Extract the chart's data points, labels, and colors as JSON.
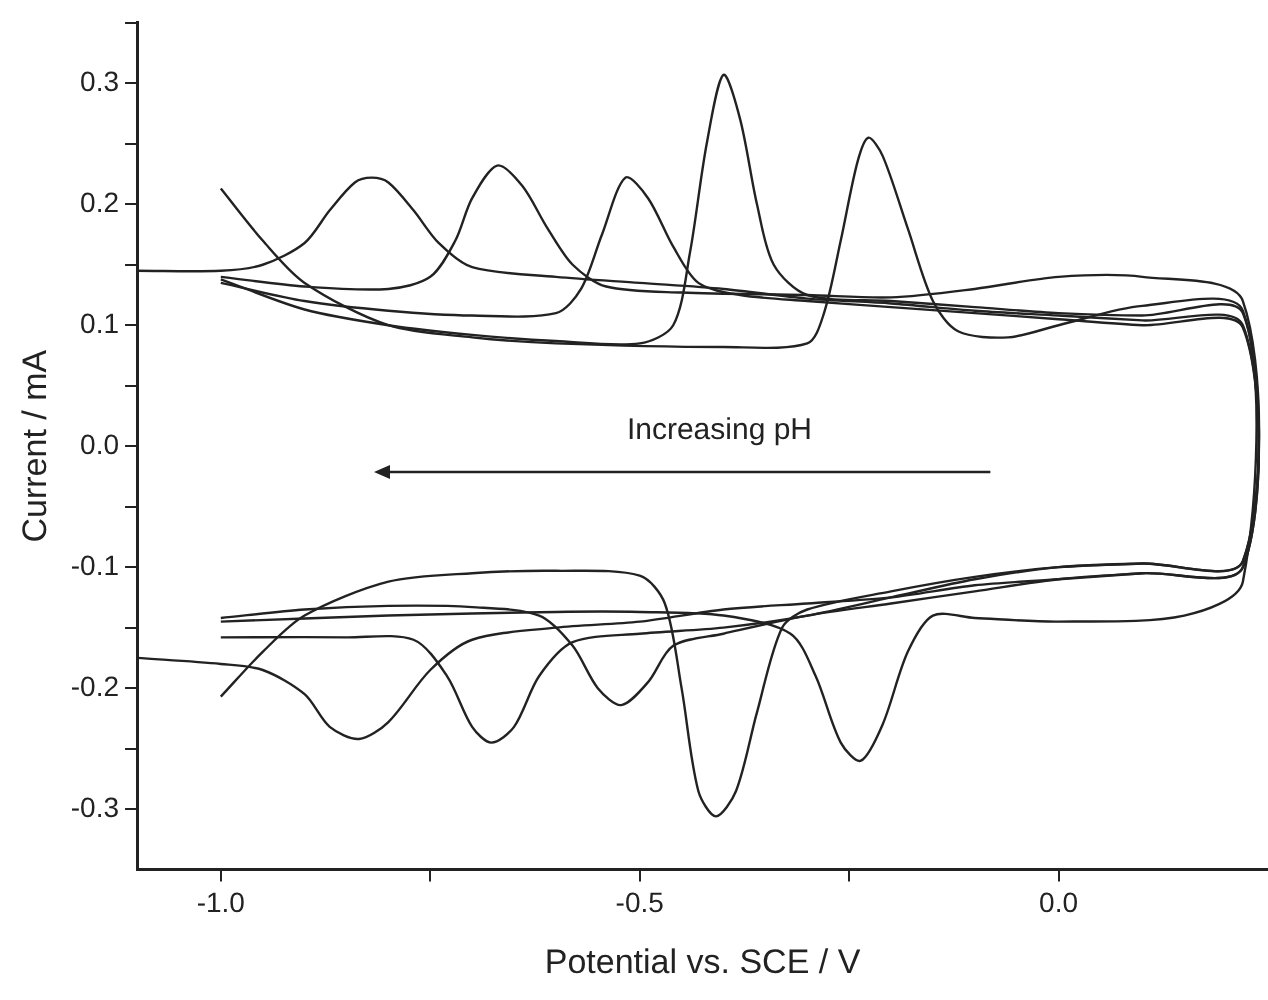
{
  "chart_data": {
    "type": "line",
    "xlabel": "Potential vs. SCE / V",
    "ylabel": "Current / mA",
    "annotations": [
      "Increasing pH"
    ],
    "xlim": [
      -1.1,
      0.25
    ],
    "xticks": [
      {
        "value": -1,
        "label": "-1.0"
      },
      {
        "value": -0.75,
        "label": null
      },
      -0.5,
      {
        "value": -0.25,
        "label": null
      },
      {
        "value": 0,
        "label": "0.0"
      }
    ],
    "ylim": [
      -0.35,
      0.35
    ],
    "yticks": [
      -0.3,
      {
        "value": -0.25,
        "label": null
      },
      -0.2,
      {
        "value": -0.15,
        "label": null
      },
      -0.1,
      {
        "value": -0.05,
        "label": null
      },
      {
        "value": 0,
        "label": "0.0"
      },
      {
        "value": 0.05,
        "label": null
      },
      0.1,
      {
        "value": 0.15,
        "label": null
      },
      0.2,
      {
        "value": 0.25,
        "label": null
      },
      0.3,
      {
        "value": 0.35,
        "label": null
      }
    ],
    "legend": false,
    "series": [
      {
        "color": "#222222",
        "x": [
          -1.1,
          -1.0,
          -0.95,
          -0.9,
          -0.87,
          -0.84,
          -0.82,
          -0.8,
          -0.77,
          -0.74,
          -0.7,
          -0.6,
          -0.5,
          -0.4,
          -0.3,
          -0.2,
          -0.1,
          0.0,
          0.1,
          0.22,
          0.22,
          0.1,
          0.0,
          -0.1,
          -0.2,
          -0.3,
          -0.4,
          -0.5,
          -0.6,
          -0.7,
          -0.75,
          -0.8,
          -0.835,
          -0.87,
          -0.9,
          -0.95,
          -1.0,
          -1.1
        ],
        "values": [
          0.145,
          0.145,
          0.15,
          0.168,
          0.195,
          0.218,
          0.222,
          0.218,
          0.195,
          0.168,
          0.148,
          0.14,
          0.135,
          0.13,
          0.122,
          0.118,
          0.112,
          0.108,
          0.104,
          0.1,
          -0.1,
          -0.105,
          -0.11,
          -0.115,
          -0.125,
          -0.13,
          -0.135,
          -0.145,
          -0.15,
          -0.16,
          -0.185,
          -0.228,
          -0.242,
          -0.232,
          -0.205,
          -0.185,
          -0.18,
          -0.175
        ]
      },
      {
        "color": "#222222",
        "x": [
          -1.0,
          -0.9,
          -0.8,
          -0.75,
          -0.72,
          -0.7,
          -0.67,
          -0.64,
          -0.61,
          -0.58,
          -0.54,
          -0.45,
          -0.3,
          -0.2,
          -0.1,
          0.0,
          0.1,
          0.22,
          0.22,
          0.1,
          0.0,
          -0.1,
          -0.2,
          -0.3,
          -0.4,
          -0.5,
          -0.58,
          -0.62,
          -0.65,
          -0.677,
          -0.7,
          -0.73,
          -0.77,
          -0.85,
          -1.0
        ],
        "values": [
          0.14,
          0.132,
          0.13,
          0.14,
          0.17,
          0.205,
          0.232,
          0.215,
          0.18,
          0.15,
          0.132,
          0.127,
          0.125,
          0.123,
          0.13,
          0.14,
          0.14,
          0.12,
          -0.095,
          -0.097,
          -0.1,
          -0.11,
          -0.125,
          -0.14,
          -0.15,
          -0.155,
          -0.162,
          -0.19,
          -0.232,
          -0.245,
          -0.232,
          -0.19,
          -0.16,
          -0.158,
          -0.158
        ]
      },
      {
        "color": "#222222",
        "x": [
          -1.0,
          -0.9,
          -0.8,
          -0.7,
          -0.6,
          -0.57,
          -0.545,
          -0.517,
          -0.49,
          -0.46,
          -0.43,
          -0.38,
          -0.3,
          -0.2,
          -0.1,
          0.0,
          0.1,
          0.22,
          0.22,
          0.1,
          0.0,
          -0.1,
          -0.2,
          -0.3,
          -0.4,
          -0.46,
          -0.49,
          -0.522,
          -0.55,
          -0.58,
          -0.62,
          -0.7,
          -0.8,
          -0.9,
          -1.0
        ],
        "values": [
          0.135,
          0.12,
          0.112,
          0.108,
          0.11,
          0.13,
          0.175,
          0.222,
          0.205,
          0.165,
          0.135,
          0.125,
          0.12,
          0.115,
          0.11,
          0.105,
          0.1,
          0.098,
          -0.1,
          -0.105,
          -0.11,
          -0.12,
          -0.13,
          -0.14,
          -0.155,
          -0.165,
          -0.195,
          -0.214,
          -0.2,
          -0.165,
          -0.14,
          -0.133,
          -0.132,
          -0.135,
          -0.142
        ]
      },
      {
        "color": "#222222",
        "x": [
          -1.0,
          -0.9,
          -0.8,
          -0.7,
          -0.6,
          -0.5,
          -0.46,
          -0.44,
          -0.42,
          -0.4,
          -0.38,
          -0.36,
          -0.34,
          -0.3,
          -0.2,
          -0.1,
          0.0,
          0.1,
          0.22,
          0.22,
          0.1,
          0.0,
          -0.1,
          -0.2,
          -0.3,
          -0.33,
          -0.36,
          -0.385,
          -0.409,
          -0.43,
          -0.45,
          -0.47,
          -0.5,
          -0.6,
          -0.7,
          -0.8,
          -0.9,
          -0.95,
          -1.0
        ],
        "values": [
          0.138,
          0.113,
          0.1,
          0.092,
          0.087,
          0.085,
          0.1,
          0.16,
          0.25,
          0.307,
          0.27,
          0.2,
          0.15,
          0.125,
          0.12,
          0.115,
          0.11,
          0.108,
          0.11,
          -0.095,
          -0.097,
          -0.1,
          -0.108,
          -0.12,
          -0.135,
          -0.15,
          -0.22,
          -0.285,
          -0.306,
          -0.285,
          -0.2,
          -0.13,
          -0.107,
          -0.103,
          -0.105,
          -0.112,
          -0.14,
          -0.17,
          -0.207
        ]
      },
      {
        "color": "#222222",
        "x": [
          -1.0,
          -0.95,
          -0.9,
          -0.8,
          -0.7,
          -0.6,
          -0.4,
          -0.3,
          -0.28,
          -0.26,
          -0.24,
          -0.227,
          -0.21,
          -0.18,
          -0.15,
          -0.12,
          -0.06,
          0.0,
          0.1,
          0.22,
          0.22,
          0.15,
          0.0,
          -0.1,
          -0.15,
          -0.18,
          -0.21,
          -0.236,
          -0.26,
          -0.29,
          -0.32,
          -0.4,
          -0.5,
          -0.6,
          -0.8,
          -1.0
        ],
        "values": [
          0.213,
          0.17,
          0.135,
          0.1,
          0.09,
          0.085,
          0.082,
          0.085,
          0.11,
          0.17,
          0.235,
          0.255,
          0.24,
          0.18,
          0.12,
          0.095,
          0.09,
          0.1,
          0.116,
          0.112,
          -0.112,
          -0.14,
          -0.145,
          -0.142,
          -0.14,
          -0.17,
          -0.23,
          -0.26,
          -0.245,
          -0.19,
          -0.155,
          -0.14,
          -0.137,
          -0.137,
          -0.14,
          -0.145
        ]
      }
    ]
  }
}
